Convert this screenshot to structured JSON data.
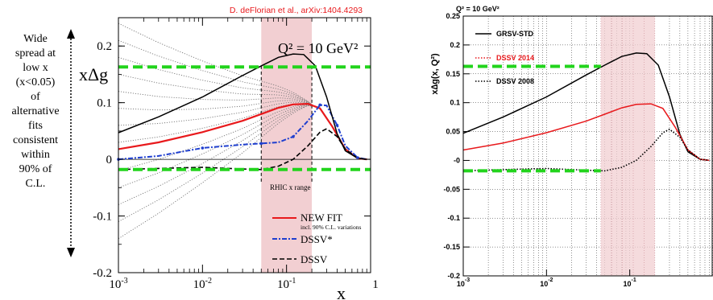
{
  "annotation": {
    "side_note_lines": [
      "Wide",
      "spread at",
      "low x",
      "(x<0.05)",
      "of",
      "alternative",
      "fits",
      "consistent",
      "within",
      "90% of",
      "C.L."
    ]
  },
  "colors": {
    "red": "#e8191c",
    "blue": "#1f3fcf",
    "green": "#22d41c",
    "band": "#f2cfd2",
    "citation": "#e8191c"
  },
  "chart_data": [
    {
      "type": "line",
      "citation": "D. deFlorian et al., arXiv:1404.4293",
      "ylabel": "xΔg",
      "xlabel": "x",
      "annotation": "Q² = 10 GeV²",
      "band_label": "RHIC x range",
      "x_scale": "log",
      "xlim": [
        0.001,
        1
      ],
      "ylim": [
        -0.2,
        0.25
      ],
      "x_ticks": [
        {
          "base": "10",
          "exp": "-3"
        },
        {
          "base": "10",
          "exp": "-2"
        },
        {
          "base": "10",
          "exp": "-1"
        },
        {
          "base": "1",
          "exp": ""
        }
      ],
      "y_ticks": [
        "-0.2",
        "-0.1",
        "0",
        "0.1",
        "0.2"
      ],
      "band": [
        0.05,
        0.2
      ],
      "legend": {
        "position": "bottom-right",
        "entries": [
          {
            "label": "NEW FIT",
            "sublabel": "incl. 90% C.L. variations"
          },
          {
            "label": "DSSV*"
          },
          {
            "label": "DSSV"
          }
        ]
      },
      "series": [
        {
          "name": "NEW FIT",
          "x": [
            0.001,
            0.003,
            0.01,
            0.03,
            0.05,
            0.08,
            0.12,
            0.18,
            0.25,
            0.35,
            0.5,
            0.7,
            0.9
          ],
          "y": [
            0.018,
            0.03,
            0.048,
            0.068,
            0.08,
            0.091,
            0.097,
            0.098,
            0.09,
            0.058,
            0.018,
            0.002,
            0.0
          ]
        },
        {
          "name": "DSSV*",
          "x": [
            0.001,
            0.003,
            0.01,
            0.03,
            0.05,
            0.08,
            0.12,
            0.18,
            0.25,
            0.3,
            0.4,
            0.5,
            0.7,
            0.9
          ],
          "y": [
            0.0,
            0.006,
            0.02,
            0.026,
            0.028,
            0.03,
            0.04,
            0.068,
            0.096,
            0.095,
            0.06,
            0.024,
            0.003,
            0.0
          ]
        },
        {
          "name": "DSSV",
          "x": [
            0.001,
            0.003,
            0.01,
            0.03,
            0.05,
            0.08,
            0.12,
            0.18,
            0.25,
            0.3,
            0.4,
            0.5,
            0.7,
            0.9
          ],
          "y": [
            -0.018,
            -0.016,
            -0.014,
            -0.017,
            -0.018,
            -0.012,
            0.0,
            0.024,
            0.048,
            0.054,
            0.04,
            0.018,
            0.002,
            0.0
          ]
        },
        {
          "name": "",
          "x": [
            0.001,
            0.003,
            0.01,
            0.03,
            0.05,
            0.08,
            0.12,
            0.16,
            0.22,
            0.3,
            0.4,
            0.5,
            0.7,
            0.9
          ],
          "y": [
            0.047,
            0.075,
            0.11,
            0.148,
            0.165,
            0.18,
            0.186,
            0.185,
            0.165,
            0.11,
            0.045,
            0.015,
            0.002,
            0.0
          ]
        }
      ],
      "variation_curves_y_at_x_1e-3": [
        0.24,
        0.21,
        0.18,
        0.15,
        0.12,
        0.09,
        0.06,
        0.03,
        -0.02,
        -0.05,
        -0.08,
        -0.11,
        -0.14
      ],
      "reference_lines_y": [
        0.163,
        -0.018
      ]
    },
    {
      "type": "line",
      "ylabel": "x∆g(x, Q²)",
      "annotation": "Q² = 10 GeV²",
      "x_scale": "log",
      "xlim": [
        0.001,
        1
      ],
      "ylim": [
        -0.2,
        0.25
      ],
      "x_ticks": [
        {
          "base": "10",
          "exp": "-3"
        },
        {
          "base": "10",
          "exp": "-2"
        },
        {
          "base": "10",
          "exp": "-1"
        }
      ],
      "y_ticks": [
        "-0.2",
        "-0.15",
        "-0.1",
        "-0.05",
        "-0",
        "0.05",
        "0.1",
        "0.15",
        "0.2",
        "0.25"
      ],
      "band": [
        0.045,
        0.2
      ],
      "legend": {
        "position": "top-left",
        "entries": [
          {
            "label": "GRSV-STD"
          },
          {
            "label": "DSSV 2014"
          },
          {
            "label": "DSSV 2008"
          }
        ]
      },
      "series": [
        {
          "name": "GRSV-STD",
          "x": [
            0.001,
            0.003,
            0.01,
            0.03,
            0.05,
            0.08,
            0.12,
            0.16,
            0.22,
            0.3,
            0.4,
            0.5,
            0.7,
            0.9
          ],
          "y": [
            0.047,
            0.075,
            0.11,
            0.148,
            0.165,
            0.18,
            0.186,
            0.185,
            0.165,
            0.11,
            0.045,
            0.015,
            0.002,
            0.0
          ]
        },
        {
          "name": "DSSV 2014",
          "x": [
            0.001,
            0.003,
            0.01,
            0.03,
            0.05,
            0.08,
            0.12,
            0.18,
            0.25,
            0.35,
            0.5,
            0.7,
            0.9
          ],
          "y": [
            0.018,
            0.03,
            0.048,
            0.068,
            0.08,
            0.091,
            0.097,
            0.098,
            0.09,
            0.058,
            0.018,
            0.002,
            0.0
          ]
        },
        {
          "name": "DSSV 2008",
          "x": [
            0.001,
            0.003,
            0.01,
            0.03,
            0.05,
            0.08,
            0.12,
            0.18,
            0.25,
            0.3,
            0.4,
            0.5,
            0.7,
            0.9
          ],
          "y": [
            -0.018,
            -0.016,
            -0.014,
            -0.017,
            -0.018,
            -0.012,
            0.0,
            0.024,
            0.048,
            0.054,
            0.04,
            0.018,
            0.002,
            0.0
          ]
        }
      ],
      "reference_lines_y": [
        0.163,
        -0.018
      ]
    }
  ]
}
